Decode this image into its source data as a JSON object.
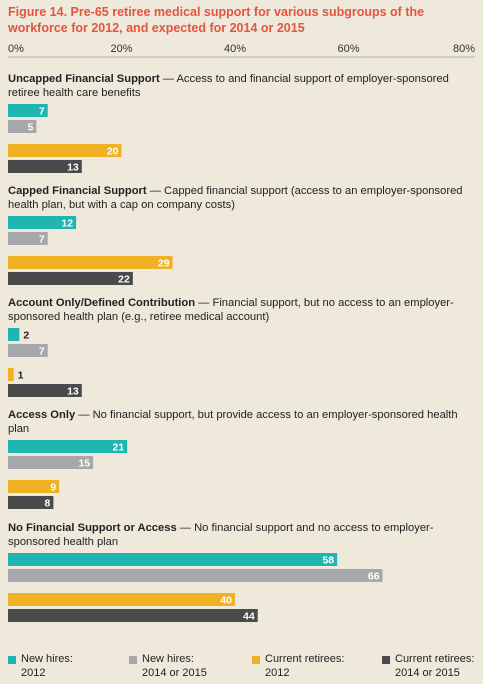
{
  "chart_data": {
    "type": "bar",
    "orientation": "horizontal",
    "title": "Figure 14. Pre-65 retiree medical support for various subgroups of the workforce for 2012, and expected for 2014 or 2015",
    "xlim": [
      0,
      80
    ],
    "x_ticks": [
      "0%",
      "20%",
      "40%",
      "60%",
      "80%"
    ],
    "grid": false,
    "legend_placement": "bottom",
    "series_meta": [
      {
        "line1": "New hires:",
        "line2": "2012",
        "color": "#1fb5b0"
      },
      {
        "line1": "New hires:",
        "line2": "2014 or 2015",
        "color": "#a7a8ab"
      },
      {
        "line1": "Current retirees:",
        "line2": "2012",
        "color": "#f0b124"
      },
      {
        "line1": "Current retirees:",
        "line2": "2014 or 2015",
        "color": "#4a4a4c"
      }
    ],
    "groups": [
      {
        "title": "Uncapped Financial Support",
        "description": " — Access to and financial support of employer-sponsored retiree health care benefits",
        "values": [
          7,
          5,
          20,
          13
        ]
      },
      {
        "title": "Capped Financial Support",
        "description": " — Capped financial support (access to an employer-sponsored health plan, but with a cap on company costs)",
        "values": [
          12,
          7,
          29,
          22
        ]
      },
      {
        "title": "Account Only/Defined Contribution",
        "description": " — Financial support, but no access to an employer-sponsored health plan (e.g., retiree medical account)",
        "values": [
          2,
          7,
          1,
          13
        ]
      },
      {
        "title": "Access Only",
        "description": " — No financial support, but provide access to an employer-sponsored health plan",
        "values": [
          21,
          15,
          9,
          8
        ]
      },
      {
        "title": "No Financial Support or Access",
        "description": " — No financial support and no access to employer-sponsored health plan",
        "values": [
          58,
          66,
          40,
          44
        ]
      }
    ]
  }
}
